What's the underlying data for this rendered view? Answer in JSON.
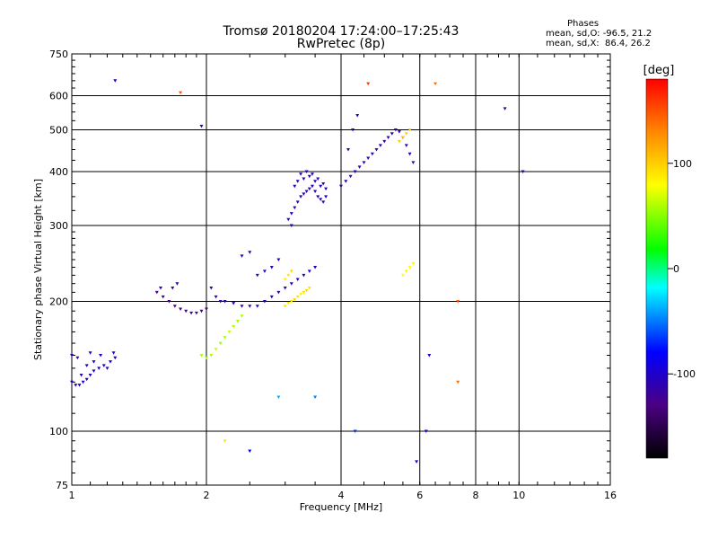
{
  "chart_data": {
    "type": "scatter",
    "title": "Tromsø 20180204 17:24:00–17:25:43",
    "subtitle": "RwPretec (8p)",
    "xlabel": "Frequency [MHz]",
    "ylabel": "Stationary phase Virtual Height [km]",
    "x_scale": "log",
    "y_scale": "log",
    "xlim": [
      1,
      16
    ],
    "ylim": [
      75,
      750
    ],
    "xticks": [
      1,
      2,
      4,
      6,
      8,
      10,
      16
    ],
    "yticks": [
      75,
      100,
      200,
      300,
      400,
      500,
      600,
      750
    ],
    "grid": true,
    "stats": {
      "heading": "Phases",
      "line_o": "mean, sd,O: -96.5, 21.2",
      "line_x": "mean, sd,X:  86.4, 26.2"
    },
    "colorbar": {
      "label": "[deg]",
      "range": [
        -180,
        180
      ],
      "ticks": [
        -100,
        0,
        100
      ]
    },
    "series": [
      {
        "marker": "triangle-down",
        "points": [
          [
            1.0,
            130,
            -110
          ],
          [
            1.02,
            128,
            -105
          ],
          [
            1.04,
            128,
            -100
          ],
          [
            1.06,
            130,
            -95
          ],
          [
            1.08,
            132,
            -100
          ],
          [
            1.1,
            135,
            -105
          ],
          [
            1.12,
            138,
            -95
          ],
          [
            1.15,
            140,
            -100
          ],
          [
            1.18,
            142,
            -105
          ],
          [
            1.2,
            140,
            -110
          ],
          [
            1.22,
            145,
            -100
          ],
          [
            1.25,
            148,
            -95
          ],
          [
            1.05,
            135,
            -110
          ],
          [
            1.08,
            142,
            -105
          ],
          [
            1.12,
            145,
            -100
          ],
          [
            1.0,
            150,
            -110
          ],
          [
            1.03,
            148,
            -120
          ],
          [
            1.1,
            152,
            -100
          ],
          [
            1.16,
            150,
            -95
          ],
          [
            1.24,
            152,
            -105
          ],
          [
            1.55,
            210,
            -130
          ],
          [
            1.6,
            205,
            -125
          ],
          [
            1.65,
            200,
            -130
          ],
          [
            1.7,
            195,
            -125
          ],
          [
            1.75,
            192,
            -130
          ],
          [
            1.8,
            190,
            -125
          ],
          [
            1.85,
            188,
            -120
          ],
          [
            1.9,
            188,
            -125
          ],
          [
            1.95,
            190,
            -130
          ],
          [
            2.0,
            192,
            -125
          ],
          [
            1.58,
            215,
            -115
          ],
          [
            1.68,
            215,
            -120
          ],
          [
            1.72,
            220,
            -110
          ],
          [
            2.05,
            215,
            -115
          ],
          [
            2.1,
            205,
            -120
          ],
          [
            2.15,
            200,
            -115
          ],
          [
            2.2,
            200,
            -110
          ],
          [
            2.3,
            198,
            -115
          ],
          [
            2.4,
            195,
            -110
          ],
          [
            2.5,
            195,
            -115
          ],
          [
            2.6,
            195,
            -110
          ],
          [
            2.7,
            200,
            -105
          ],
          [
            2.8,
            205,
            -110
          ],
          [
            2.9,
            210,
            -115
          ],
          [
            3.0,
            215,
            -110
          ],
          [
            3.1,
            220,
            -105
          ],
          [
            3.2,
            225,
            -110
          ],
          [
            3.3,
            230,
            -100
          ],
          [
            3.4,
            235,
            -105
          ],
          [
            3.5,
            240,
            -100
          ],
          [
            2.6,
            230,
            -110
          ],
          [
            2.7,
            235,
            -105
          ],
          [
            2.8,
            240,
            -110
          ],
          [
            2.9,
            250,
            -100
          ],
          [
            2.4,
            255,
            -110
          ],
          [
            2.5,
            260,
            -105
          ],
          [
            3.1,
            320,
            -105
          ],
          [
            3.15,
            330,
            -110
          ],
          [
            3.2,
            340,
            -105
          ],
          [
            3.25,
            350,
            -110
          ],
          [
            3.3,
            355,
            -105
          ],
          [
            3.35,
            360,
            -110
          ],
          [
            3.4,
            365,
            -105
          ],
          [
            3.45,
            370,
            -110
          ],
          [
            3.5,
            360,
            -105
          ],
          [
            3.55,
            350,
            -110
          ],
          [
            3.6,
            345,
            -105
          ],
          [
            3.65,
            340,
            -110
          ],
          [
            3.7,
            350,
            -105
          ],
          [
            3.6,
            370,
            -110
          ],
          [
            3.5,
            380,
            -105
          ],
          [
            3.4,
            390,
            -110
          ],
          [
            3.3,
            385,
            -105
          ],
          [
            3.2,
            380,
            -110
          ],
          [
            3.15,
            370,
            -105
          ],
          [
            3.25,
            395,
            -110
          ],
          [
            3.35,
            400,
            -105
          ],
          [
            3.45,
            395,
            -110
          ],
          [
            3.55,
            385,
            -105
          ],
          [
            3.65,
            375,
            -110
          ],
          [
            3.7,
            365,
            -105
          ],
          [
            3.05,
            310,
            -110
          ],
          [
            3.1,
            300,
            -105
          ],
          [
            4.0,
            370,
            -115
          ],
          [
            4.1,
            380,
            -110
          ],
          [
            4.2,
            390,
            -115
          ],
          [
            4.3,
            400,
            -110
          ],
          [
            4.4,
            410,
            -115
          ],
          [
            4.5,
            420,
            -110
          ],
          [
            4.6,
            430,
            -115
          ],
          [
            4.7,
            440,
            -110
          ],
          [
            4.8,
            450,
            -115
          ],
          [
            4.9,
            460,
            -110
          ],
          [
            5.0,
            470,
            -115
          ],
          [
            5.1,
            480,
            -110
          ],
          [
            5.2,
            490,
            -115
          ],
          [
            5.3,
            500,
            -110
          ],
          [
            5.4,
            495,
            -115
          ],
          [
            5.5,
            480,
            -110
          ],
          [
            5.6,
            460,
            -115
          ],
          [
            5.7,
            440,
            -110
          ],
          [
            5.8,
            420,
            -115
          ],
          [
            4.15,
            450,
            -110
          ],
          [
            4.25,
            500,
            -115
          ],
          [
            4.35,
            540,
            -110
          ],
          [
            1.95,
            150,
            60
          ],
          [
            2.0,
            148,
            55
          ],
          [
            2.05,
            150,
            60
          ],
          [
            2.1,
            155,
            65
          ],
          [
            2.15,
            160,
            55
          ],
          [
            2.2,
            165,
            60
          ],
          [
            2.25,
            170,
            65
          ],
          [
            2.3,
            175,
            60
          ],
          [
            2.35,
            180,
            55
          ],
          [
            2.4,
            185,
            60
          ],
          [
            3.0,
            195,
            90
          ],
          [
            3.05,
            198,
            85
          ],
          [
            3.1,
            200,
            90
          ],
          [
            3.15,
            202,
            95
          ],
          [
            3.2,
            205,
            90
          ],
          [
            3.25,
            208,
            85
          ],
          [
            3.3,
            210,
            90
          ],
          [
            3.35,
            212,
            95
          ],
          [
            3.4,
            215,
            90
          ],
          [
            3.0,
            225,
            85
          ],
          [
            3.05,
            230,
            90
          ],
          [
            3.1,
            235,
            95
          ],
          [
            5.5,
            230,
            80
          ],
          [
            5.6,
            235,
            85
          ],
          [
            5.7,
            240,
            80
          ],
          [
            5.8,
            245,
            85
          ],
          [
            5.4,
            470,
            100
          ],
          [
            5.5,
            480,
            105
          ],
          [
            5.6,
            490,
            100
          ],
          [
            5.7,
            500,
            95
          ],
          [
            1.25,
            650,
            -100
          ],
          [
            1.75,
            610,
            150
          ],
          [
            1.95,
            510,
            -110
          ],
          [
            4.6,
            640,
            160
          ],
          [
            6.5,
            640,
            140
          ],
          [
            9.3,
            560,
            -115
          ],
          [
            10.2,
            400,
            -100
          ],
          [
            7.3,
            200,
            150
          ],
          [
            7.3,
            130,
            140
          ],
          [
            6.2,
            100,
            -90
          ],
          [
            6.3,
            150,
            -100
          ],
          [
            5.9,
            85,
            -90
          ],
          [
            2.2,
            95,
            90
          ],
          [
            2.5,
            90,
            -80
          ],
          [
            3.5,
            120,
            -50
          ],
          [
            2.9,
            120,
            -40
          ],
          [
            4.3,
            100,
            -70
          ]
        ]
      }
    ]
  }
}
